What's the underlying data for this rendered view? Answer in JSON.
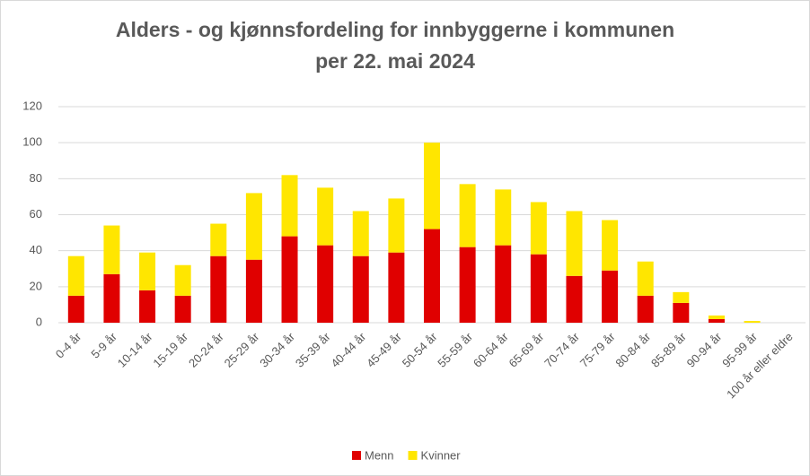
{
  "chart_data": {
    "type": "stacked_bar",
    "title": [
      "Alders - og kjønnsfordeling for innbyggerne i kommunen",
      "per 22. mai 2024"
    ],
    "categories": [
      "0-4 år",
      "5-9 år",
      "10-14 år",
      "15-19 år",
      "20-24 år",
      "25-29 år",
      "30-34 år",
      "35-39 år",
      "40-44 år",
      "45-49 år",
      "50-54 år",
      "55-59 år",
      "60-64 år",
      "65-69 år",
      "70-74 år",
      "75-79 år",
      "80-84 år",
      "85-89 år",
      "90-94 år",
      "95-99 år",
      "100 år eller eldre"
    ],
    "series": [
      {
        "name": "Menn",
        "color": "#e00000",
        "values": [
          15,
          27,
          18,
          15,
          37,
          35,
          48,
          43,
          37,
          39,
          52,
          42,
          43,
          38,
          26,
          29,
          15,
          11,
          2,
          0,
          0
        ]
      },
      {
        "name": "Kvinner",
        "color": "#ffe600",
        "values": [
          22,
          27,
          21,
          17,
          18,
          37,
          34,
          32,
          25,
          30,
          48,
          35,
          31,
          29,
          36,
          28,
          19,
          6,
          2,
          1,
          0
        ]
      }
    ],
    "ylim": [
      0,
      120
    ],
    "yticks": [
      0,
      20,
      40,
      60,
      80,
      100,
      120
    ],
    "grid": true,
    "legend": "bottom"
  }
}
